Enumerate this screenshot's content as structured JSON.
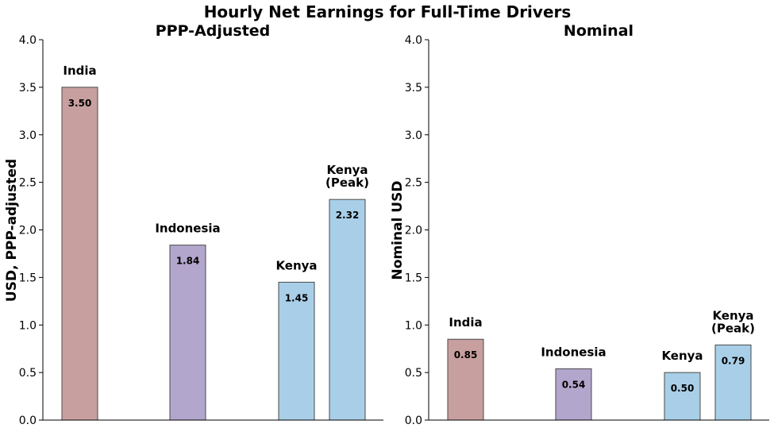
{
  "title": "Hourly Net Earnings for Full-Time Drivers",
  "chart_data": [
    {
      "type": "bar",
      "title": "PPP-Adjusted",
      "xlabel": "",
      "ylabel": "USD, PPP-adjusted",
      "ylim": [
        0,
        4.0
      ],
      "yticks": [
        "0.0",
        "0.5",
        "1.0",
        "1.5",
        "2.0",
        "2.5",
        "3.0",
        "3.5",
        "4.0"
      ],
      "grid": false,
      "categories": [
        "India",
        "Indonesia",
        "Kenya",
        "Kenya\n(Peak)"
      ],
      "values": [
        3.5,
        1.84,
        1.45,
        2.32
      ],
      "value_labels": [
        "3.50",
        "1.84",
        "1.45",
        "2.32"
      ],
      "colors": [
        "#c89f9f",
        "#b3a6cc",
        "#a9cfe8",
        "#a9cfe8"
      ]
    },
    {
      "type": "bar",
      "title": "Nominal",
      "xlabel": "",
      "ylabel": "Nominal USD",
      "ylim": [
        0,
        4.0
      ],
      "yticks": [
        "0.0",
        "0.5",
        "1.0",
        "1.5",
        "2.0",
        "2.5",
        "3.0",
        "3.5",
        "4.0"
      ],
      "grid": false,
      "categories": [
        "India",
        "Indonesia",
        "Kenya",
        "Kenya\n(Peak)"
      ],
      "values": [
        0.85,
        0.54,
        0.5,
        0.79
      ],
      "value_labels": [
        "0.85",
        "0.54",
        "0.50",
        "0.79"
      ],
      "colors": [
        "#c89f9f",
        "#b3a6cc",
        "#a9cfe8",
        "#a9cfe8"
      ]
    }
  ]
}
